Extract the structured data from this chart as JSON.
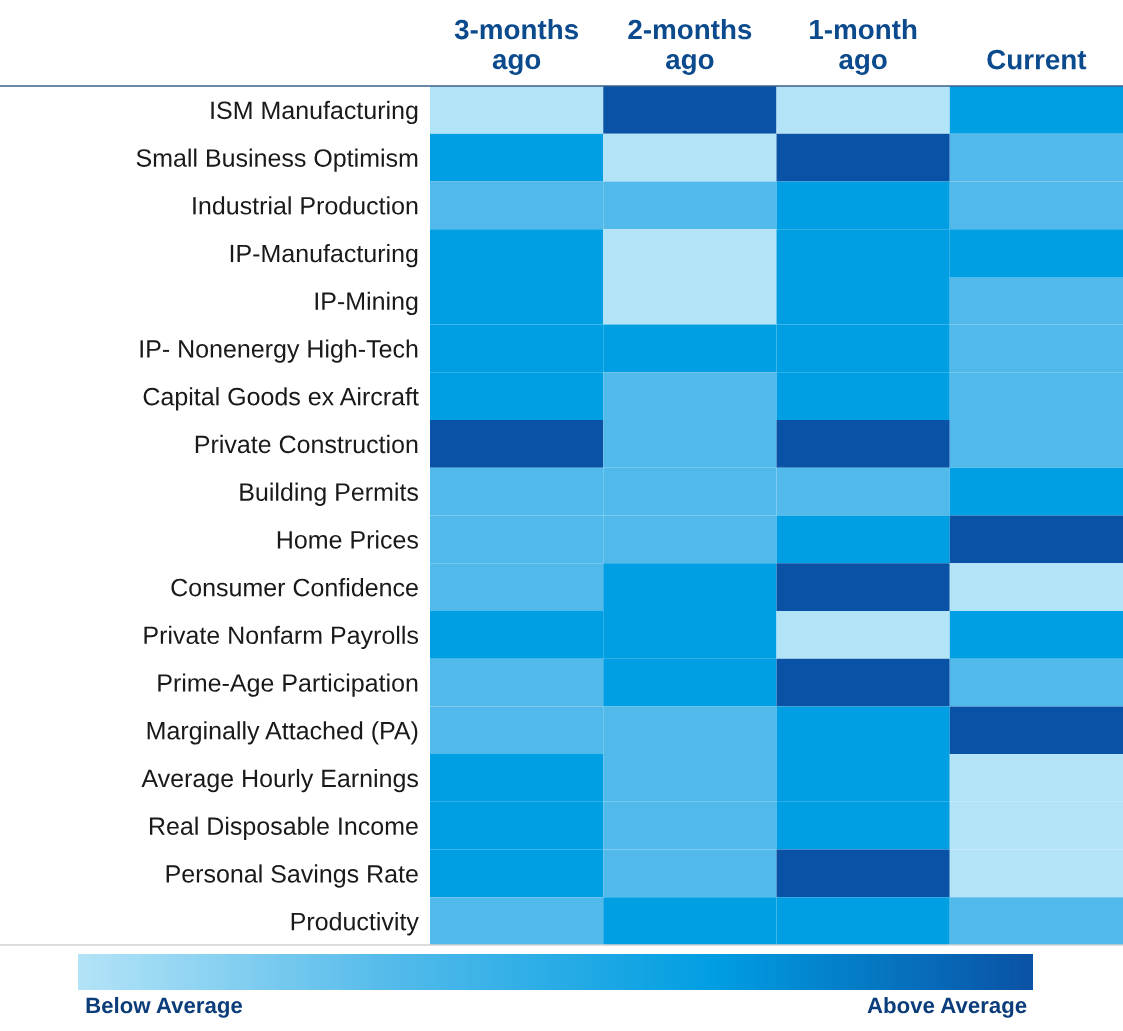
{
  "chart_data": {
    "type": "heatmap",
    "categories": [
      "3-months\nago",
      "2-months\nago",
      "1-month\nago",
      "Current"
    ],
    "y_categories": [
      "ISM Manufacturing",
      "Small Business Optimism",
      "Industrial Production",
      "IP-Manufacturing",
      "IP-Mining",
      "IP- Nonenergy High-Tech",
      "Capital Goods ex Aircraft",
      "Private Construction",
      "Building Permits",
      "Home Prices",
      "Consumer Confidence",
      "Private Nonfarm Payrolls",
      "Prime-Age Participation",
      "Marginally Attached (PA)",
      "Average Hourly Earnings",
      "Real Disposable Income",
      "Personal Savings Rate",
      "Productivity"
    ],
    "cells": [
      [
        1,
        4,
        1,
        3
      ],
      [
        3,
        1,
        4,
        2
      ],
      [
        2,
        2,
        3,
        2
      ],
      [
        3,
        1,
        3,
        3
      ],
      [
        3,
        1,
        3,
        2
      ],
      [
        3,
        3,
        3,
        2
      ],
      [
        3,
        2,
        3,
        2
      ],
      [
        4,
        2,
        4,
        2
      ],
      [
        2,
        2,
        2,
        3
      ],
      [
        2,
        2,
        3,
        4
      ],
      [
        2,
        3,
        4,
        1
      ],
      [
        3,
        3,
        1,
        3
      ],
      [
        2,
        3,
        4,
        2
      ],
      [
        2,
        2,
        3,
        4
      ],
      [
        3,
        2,
        3,
        1
      ],
      [
        3,
        2,
        3,
        1
      ],
      [
        3,
        2,
        4,
        1
      ],
      [
        2,
        3,
        3,
        2
      ]
    ],
    "colors": [
      "#b3e3f7",
      "#52baea",
      "#009ee2",
      "#0a52a5"
    ],
    "clim": [
      1,
      4
    ],
    "cticks": [
      {
        "value": 1.27,
        "label": "Below Average"
      },
      {
        "value": 3.73,
        "label": "Above Average"
      }
    ],
    "grid": false
  }
}
